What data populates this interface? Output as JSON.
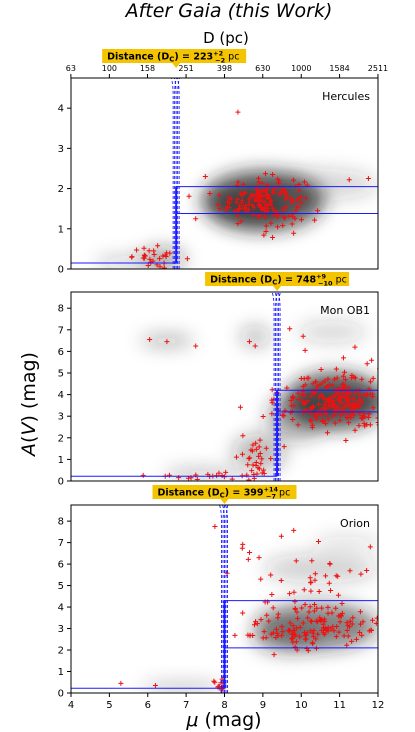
{
  "figure": {
    "title": "After Gaia (this Work)",
    "top_axis_label": "D (pc)",
    "top_axis_ticks": [
      "63",
      "100",
      "158",
      "251",
      "398",
      "630",
      "1000",
      "1584",
      "2511"
    ],
    "ylabel": "A(V) (mag)",
    "xlabel": "μ (mag)"
  },
  "colors": {
    "points": "#ee1111",
    "lines": "#1a1aff",
    "badge": "#f5c400",
    "density": "#222222"
  },
  "chart_data": [
    {
      "type": "scatter",
      "panel": "Hercules",
      "label": "Hercules",
      "badge": {
        "prefix": "Distance (D",
        "sub": "C",
        "mid": ") = ",
        "value": "223",
        "plus": "+2",
        "minus": "−2",
        "unit": " pc"
      },
      "distance_modulus": 6.74,
      "ext_before": 0.15,
      "ext_after_band": [
        1.38,
        2.05
      ],
      "ylim": [
        0,
        4.75
      ],
      "yticks": [
        0,
        1,
        2,
        3,
        4
      ],
      "xlim": [
        4,
        12
      ],
      "density_blobs": [
        {
          "x": 9.0,
          "y": 1.7,
          "rx": 1.6,
          "ry": 0.75,
          "o": 0.75
        },
        {
          "x": 8.6,
          "y": 1.5,
          "rx": 1.0,
          "ry": 0.5,
          "o": 0.4
        },
        {
          "x": 10.5,
          "y": 2.1,
          "rx": 1.5,
          "ry": 0.4,
          "o": 0.18
        },
        {
          "x": 6.4,
          "y": 0.25,
          "rx": 0.6,
          "ry": 0.3,
          "o": 0.35
        },
        {
          "x": 5.6,
          "y": 0.15,
          "rx": 1.0,
          "ry": 0.2,
          "o": 0.2
        }
      ],
      "clusters": [
        {
          "x": 9.0,
          "y": 1.7,
          "sx": 0.55,
          "sy": 0.3,
          "n": 170
        },
        {
          "x": 6.3,
          "y": 0.3,
          "sx": 0.35,
          "sy": 0.12,
          "n": 28
        }
      ],
      "extra_points": [
        [
          8.35,
          3.9
        ],
        [
          11.25,
          2.22
        ],
        [
          11.75,
          2.25
        ],
        [
          7.5,
          2.3
        ],
        [
          7.25,
          1.25
        ]
      ]
    },
    {
      "type": "scatter",
      "panel": "Mon OB1",
      "label": "Mon OB1",
      "badge": {
        "prefix": "Distance (D",
        "sub": "C",
        "mid": ") = ",
        "value": "748",
        "plus": "+9",
        "minus": "−10",
        "unit": " pc"
      },
      "distance_modulus": 9.37,
      "ext_before": 0.22,
      "ext_after_band": [
        3.2,
        4.2
      ],
      "ylim": [
        0,
        8.75
      ],
      "yticks": [
        0,
        1,
        2,
        3,
        4,
        5,
        6,
        7,
        8
      ],
      "xlim": [
        4,
        12
      ],
      "density_blobs": [
        {
          "x": 10.9,
          "y": 3.7,
          "rx": 1.3,
          "ry": 1.3,
          "o": 0.8
        },
        {
          "x": 9.9,
          "y": 3.0,
          "rx": 0.8,
          "ry": 1.1,
          "o": 0.4
        },
        {
          "x": 8.9,
          "y": 1.3,
          "rx": 0.7,
          "ry": 0.9,
          "o": 0.3
        },
        {
          "x": 6.5,
          "y": 6.5,
          "rx": 0.7,
          "ry": 0.3,
          "o": 0.3
        },
        {
          "x": 8.8,
          "y": 6.7,
          "rx": 0.4,
          "ry": 0.5,
          "o": 0.28
        },
        {
          "x": 10.8,
          "y": 6.9,
          "rx": 0.9,
          "ry": 0.5,
          "o": 0.18
        },
        {
          "x": 7.4,
          "y": 0.3,
          "rx": 1.0,
          "ry": 0.3,
          "o": 0.25
        }
      ],
      "clusters": [
        {
          "x": 10.9,
          "y": 3.7,
          "sx": 0.75,
          "sy": 0.7,
          "n": 260
        },
        {
          "x": 8.8,
          "y": 0.9,
          "sx": 0.3,
          "sy": 0.5,
          "n": 30
        },
        {
          "x": 7.3,
          "y": 0.25,
          "sx": 0.7,
          "sy": 0.1,
          "n": 20
        }
      ],
      "extra_points": [
        [
          6.05,
          6.55
        ],
        [
          6.5,
          6.45
        ],
        [
          7.25,
          6.25
        ],
        [
          8.65,
          6.45
        ],
        [
          8.8,
          6.25
        ],
        [
          10.05,
          6.7
        ],
        [
          10.1,
          6.05
        ],
        [
          9.7,
          7.05
        ],
        [
          11.4,
          6.2
        ],
        [
          11.1,
          5.7
        ]
      ]
    },
    {
      "type": "scatter",
      "panel": "Orion",
      "label": "Orion",
      "badge": {
        "prefix": "Distance (D",
        "sub": "C",
        "mid": ") = ",
        "value": "399",
        "plus": "+14",
        "minus": "−7",
        "unit": " pc"
      },
      "distance_modulus": 8.0,
      "ext_before": 0.22,
      "ext_after_band": [
        2.1,
        4.3
      ],
      "ylim": [
        0,
        8.75
      ],
      "yticks": [
        0,
        1,
        2,
        3,
        4,
        5,
        6,
        7,
        8
      ],
      "xlim": [
        4,
        12
      ],
      "xticks": [
        4,
        5,
        6,
        7,
        8,
        9,
        10,
        11,
        12
      ],
      "density_blobs": [
        {
          "x": 10.4,
          "y": 3.1,
          "rx": 1.6,
          "ry": 1.1,
          "o": 0.55
        },
        {
          "x": 9.6,
          "y": 2.6,
          "rx": 0.9,
          "ry": 0.8,
          "o": 0.3
        },
        {
          "x": 10.5,
          "y": 5.8,
          "rx": 1.5,
          "ry": 0.7,
          "o": 0.2
        },
        {
          "x": 11.2,
          "y": 7.0,
          "rx": 0.9,
          "ry": 0.35,
          "o": 0.14
        },
        {
          "x": 6.9,
          "y": 0.25,
          "rx": 1.1,
          "ry": 0.25,
          "o": 0.25
        }
      ],
      "clusters": [
        {
          "x": 10.4,
          "y": 3.0,
          "sx": 0.9,
          "sy": 0.55,
          "n": 140
        },
        {
          "x": 10.0,
          "y": 5.2,
          "sx": 1.1,
          "sy": 0.9,
          "n": 45
        },
        {
          "x": 7.9,
          "y": 0.35,
          "sx": 0.1,
          "sy": 0.15,
          "n": 12
        }
      ],
      "extra_points": [
        [
          7.75,
          7.75
        ],
        [
          10.45,
          7.05
        ],
        [
          11.8,
          6.8
        ],
        [
          8.9,
          6.3
        ],
        [
          10.75,
          6.0
        ],
        [
          5.3,
          0.45
        ],
        [
          6.2,
          0.35
        ]
      ]
    }
  ]
}
